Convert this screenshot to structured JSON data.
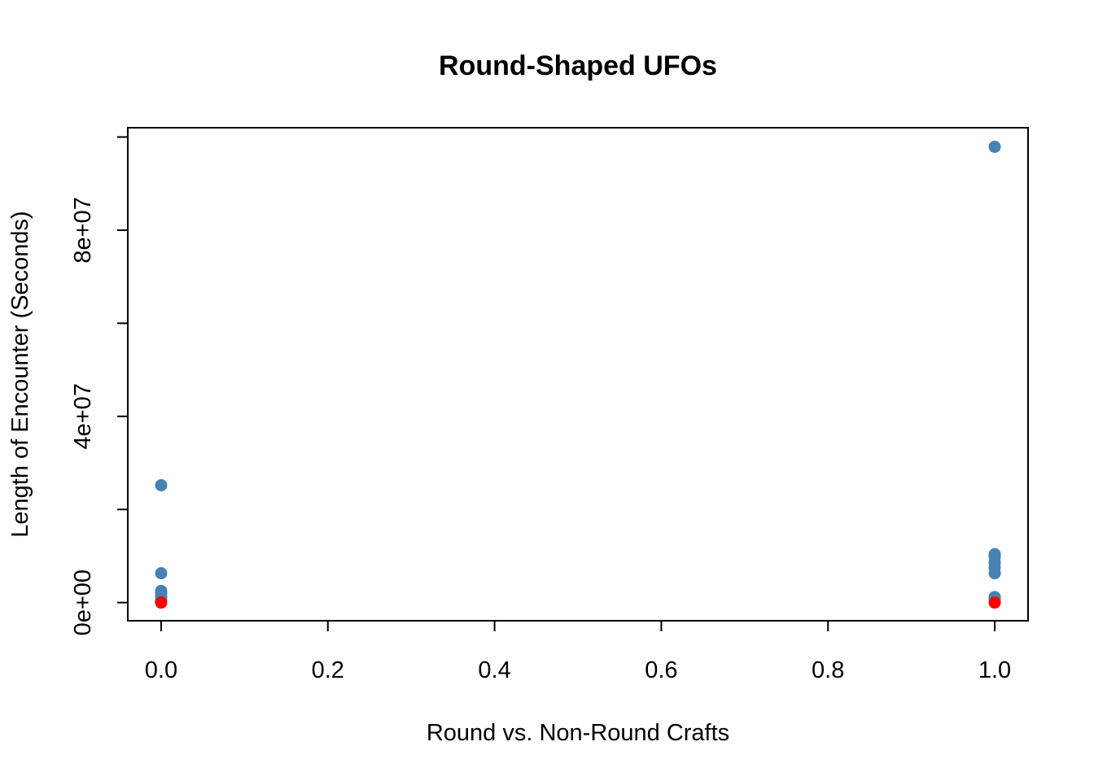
{
  "chart_data": {
    "type": "scatter",
    "title": "Round-Shaped UFOs",
    "xlabel": "Round vs. Non-Round Crafts",
    "ylabel": "Length of Encounter (Seconds)",
    "xlim": [
      -0.04,
      1.04
    ],
    "ylim": [
      -3900000,
      102000000
    ],
    "x_ticks": [
      0.0,
      0.2,
      0.4,
      0.6,
      0.8,
      1.0
    ],
    "x_tick_labels": [
      "0.0",
      "0.2",
      "0.4",
      "0.6",
      "0.8",
      "1.0"
    ],
    "y_ticks": [
      0,
      20000000,
      40000000,
      60000000,
      80000000,
      100000000
    ],
    "y_tick_labels": [
      "0e+00",
      "",
      "4e+07",
      "",
      "8e+07",
      ""
    ],
    "grid": false,
    "series": [
      {
        "color": "#4682B4",
        "points": [
          {
            "x": 0,
            "y": 25200000
          },
          {
            "x": 0,
            "y": 6300000
          },
          {
            "x": 0,
            "y": 2500000
          },
          {
            "x": 0,
            "y": 2000000
          },
          {
            "x": 0,
            "y": 1200000
          },
          {
            "x": 0,
            "y": 600000
          },
          {
            "x": 0,
            "y": 200000
          },
          {
            "x": 1,
            "y": 97900000
          },
          {
            "x": 1,
            "y": 10400000
          },
          {
            "x": 1,
            "y": 9800000
          },
          {
            "x": 1,
            "y": 8600000
          },
          {
            "x": 1,
            "y": 7500000
          },
          {
            "x": 1,
            "y": 6300000
          },
          {
            "x": 1,
            "y": 1200000
          },
          {
            "x": 1,
            "y": 600000
          }
        ]
      },
      {
        "color": "#FF0000",
        "points": [
          {
            "x": 0,
            "y": 0
          },
          {
            "x": 1,
            "y": 0
          }
        ]
      }
    ]
  }
}
